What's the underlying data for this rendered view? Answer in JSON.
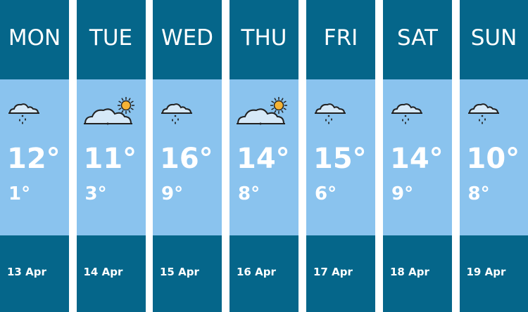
{
  "days": [
    {
      "day": "MON",
      "high": "12°",
      "low": "1°",
      "date": "13 Apr",
      "icon": "rain-cloud-icon"
    },
    {
      "day": "TUE",
      "high": "11°",
      "low": "3°",
      "date": "14 Apr",
      "icon": "sun-cloud-icon"
    },
    {
      "day": "WED",
      "high": "16°",
      "low": "9°",
      "date": "15 Apr",
      "icon": "rain-cloud-icon"
    },
    {
      "day": "THU",
      "high": "14°",
      "low": "8°",
      "date": "16 Apr",
      "icon": "sun-cloud-icon"
    },
    {
      "day": "FRI",
      "high": "15°",
      "low": "6°",
      "date": "17 Apr",
      "icon": "rain-cloud-icon"
    },
    {
      "day": "SAT",
      "high": "14°",
      "low": "9°",
      "date": "18 Apr",
      "icon": "rain-cloud-icon"
    },
    {
      "day": "SUN",
      "high": "10°",
      "low": "8°",
      "date": "19 Apr",
      "icon": "rain-cloud-icon"
    }
  ],
  "colors": {
    "header": "#05668a",
    "body": "#8ac3ee",
    "sun": "#f5b335"
  }
}
